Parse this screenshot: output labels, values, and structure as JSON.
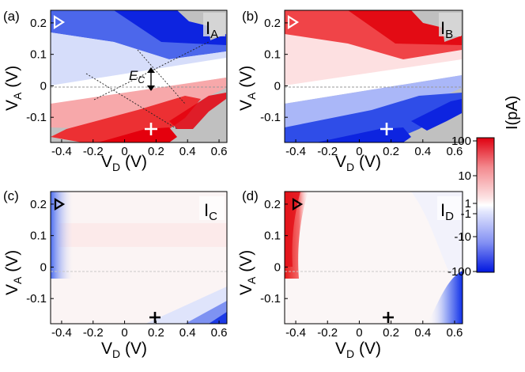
{
  "figure": {
    "colorbar": {
      "label": "I(pA)",
      "tick_labels": [
        "100",
        "10",
        "1",
        "-1",
        "-10",
        "-100"
      ],
      "colors": {
        "positive": "#e3000f",
        "negative": "#0018e0",
        "zero": "#ffffff",
        "nan": "#c0c0c0"
      },
      "scale": "symlog"
    }
  },
  "chart_data": [
    {
      "type": "heatmap",
      "panel_label": "(a)",
      "title": "I",
      "title_sub": "A",
      "xlabel": "V",
      "xlabel_sub": "D",
      "xunit": " (V)",
      "ylabel": "V",
      "ylabel_sub": "A",
      "yunit": " (V)",
      "xlim": [
        -0.47,
        0.65
      ],
      "ylim": [
        -0.18,
        0.24
      ],
      "x_ticks": [
        "-0.4",
        "-0.2",
        "0",
        "0.2",
        "0.4",
        "0.6"
      ],
      "y_ticks": [
        "0.2",
        "0.1",
        "0",
        "-0.1"
      ],
      "annotations": {
        "charging_energy": "E",
        "charging_energy_sub": "C"
      },
      "markers": {
        "triangle": [
          -0.44,
          0.21
        ],
        "plus": [
          0.2,
          -0.15
        ]
      }
    },
    {
      "type": "heatmap",
      "panel_label": "(b)",
      "title": "I",
      "title_sub": "B",
      "xlabel": "V",
      "xlabel_sub": "D",
      "xunit": " (V)",
      "ylabel": "V",
      "ylabel_sub": "A",
      "yunit": " (V)",
      "xlim": [
        -0.47,
        0.65
      ],
      "ylim": [
        -0.18,
        0.24
      ],
      "x_ticks": [
        "-0.4",
        "-0.2",
        "0",
        "0.2",
        "0.4",
        "0.6"
      ],
      "y_ticks": [
        "0.2",
        "0.1",
        "0",
        "-0.1"
      ],
      "markers": {
        "triangle": [
          -0.44,
          0.21
        ],
        "plus": [
          0.2,
          -0.15
        ]
      }
    },
    {
      "type": "heatmap",
      "panel_label": "(c)",
      "title": "I",
      "title_sub": "C",
      "xlabel": "V",
      "xlabel_sub": "D",
      "xunit": " (V)",
      "ylabel": "V",
      "ylabel_sub": "A",
      "yunit": " (V)",
      "xlim": [
        -0.47,
        0.65
      ],
      "ylim": [
        -0.18,
        0.24
      ],
      "x_ticks": [
        "-0.4",
        "-0.2",
        "0",
        "0.2",
        "0.4",
        "0.6"
      ],
      "y_ticks": [
        "0.2",
        "0.1",
        "0",
        "-0.1"
      ],
      "markers": {
        "triangle": [
          -0.44,
          0.21
        ],
        "plus": [
          0.2,
          -0.15
        ]
      }
    },
    {
      "type": "heatmap",
      "panel_label": "(d)",
      "title": "I",
      "title_sub": "D",
      "xlabel": "V",
      "xlabel_sub": "D",
      "xunit": " (V)",
      "ylabel": "V",
      "ylabel_sub": "A",
      "yunit": " (V)",
      "xlim": [
        -0.47,
        0.65
      ],
      "ylim": [
        -0.18,
        0.24
      ],
      "x_ticks": [
        "-0.4",
        "-0.2",
        "0",
        "0.2",
        "0.4",
        "0.6"
      ],
      "y_ticks": [
        "0.2",
        "0.1",
        "0",
        "-0.1"
      ],
      "markers": {
        "triangle": [
          -0.44,
          0.21
        ],
        "plus": [
          0.2,
          -0.15
        ]
      }
    }
  ]
}
